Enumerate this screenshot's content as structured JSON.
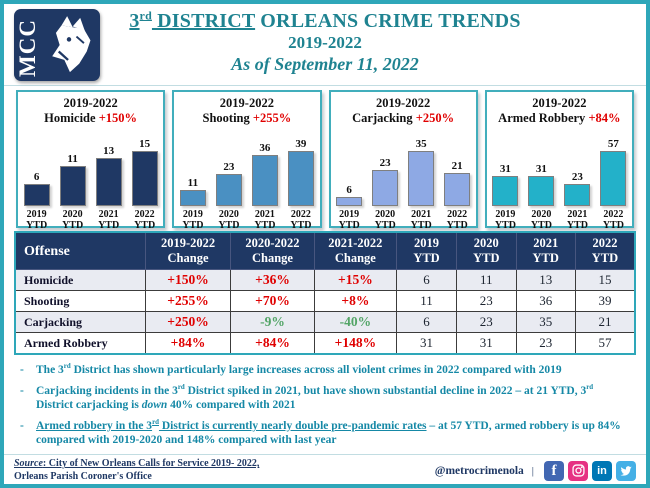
{
  "colors": {
    "accent_teal": "#2ea7b9",
    "brand_navy": "#1f3864",
    "increase_red": "#e00000",
    "decrease_green": "#53a567",
    "header_teal": "#1f8391",
    "bullet_teal": "#1588a6"
  },
  "header": {
    "logo_text": "MCC",
    "title_line1_segments": [
      {
        "t": "3",
        "c": "u"
      },
      {
        "t": "rd",
        "c": "sup u"
      },
      {
        "t": " DISTRICT",
        "c": "u"
      },
      {
        "t": " ORLEANS CRIME TRENDS"
      }
    ],
    "title_line2": "2019-2022",
    "title_line3": "As of September 11, 2022"
  },
  "chart_data": [
    {
      "type": "bar",
      "title_range": "2019-2022",
      "label": "Homicide",
      "pct_change": "+150%",
      "categories": [
        "2019 YTD",
        "2020 YTD",
        "2021 YTD",
        "2022 YTD"
      ],
      "values": [
        6,
        11,
        13,
        15
      ],
      "bar_color": "#1f3864",
      "value_labels": true,
      "ylim": [
        0,
        15
      ]
    },
    {
      "type": "bar",
      "title_range": "2019-2022",
      "label": "Shooting",
      "pct_change": "+255%",
      "categories": [
        "2019 YTD",
        "2020 YTD",
        "2021 YTD",
        "2022 YTD"
      ],
      "values": [
        11,
        23,
        36,
        39
      ],
      "bar_color": "#4a90c2",
      "value_labels": true,
      "ylim": [
        0,
        39
      ]
    },
    {
      "type": "bar",
      "title_range": "2019-2022",
      "label": "Carjacking",
      "pct_change": "+250%",
      "categories": [
        "2019 YTD",
        "2020 YTD",
        "2021 YTD",
        "2022 YTD"
      ],
      "values": [
        6,
        23,
        35,
        21
      ],
      "bar_color": "#8ea9e4",
      "value_labels": true,
      "ylim": [
        0,
        35
      ]
    },
    {
      "type": "bar",
      "title_range": "2019-2022",
      "label": "Armed Robbery",
      "pct_change": "+84%",
      "categories": [
        "2019 YTD",
        "2020 YTD",
        "2021 YTD",
        "2022 YTD"
      ],
      "values": [
        31,
        31,
        23,
        57
      ],
      "bar_color": "#23b1c9",
      "value_labels": true,
      "ylim": [
        0,
        57
      ]
    }
  ],
  "table": {
    "offense_header": "Offense",
    "headers": [
      [
        "2019-2022",
        "Change"
      ],
      [
        "2020-2022",
        "Change"
      ],
      [
        "2021-2022",
        "Change"
      ],
      [
        "2019",
        "YTD"
      ],
      [
        "2020",
        "YTD"
      ],
      [
        "2021",
        "YTD"
      ],
      [
        "2022",
        "YTD"
      ]
    ],
    "rows": [
      {
        "offense": "Homicide",
        "changes": [
          {
            "v": "+150%",
            "c": "red"
          },
          {
            "v": "+36%",
            "c": "red"
          },
          {
            "v": "+15%",
            "c": "red"
          }
        ],
        "ytd": [
          "6",
          "11",
          "13",
          "15"
        ]
      },
      {
        "offense": "Shooting",
        "changes": [
          {
            "v": "+255%",
            "c": "red"
          },
          {
            "v": "+70%",
            "c": "red"
          },
          {
            "v": "+8%",
            "c": "red"
          }
        ],
        "ytd": [
          "11",
          "23",
          "36",
          "39"
        ]
      },
      {
        "offense": "Carjacking",
        "changes": [
          {
            "v": "+250%",
            "c": "red"
          },
          {
            "v": "-9%",
            "c": "green"
          },
          {
            "v": "-40%",
            "c": "green"
          }
        ],
        "ytd": [
          "6",
          "23",
          "35",
          "21"
        ]
      },
      {
        "offense": "Armed Robbery",
        "changes": [
          {
            "v": "+84%",
            "c": "red"
          },
          {
            "v": "+84%",
            "c": "red"
          },
          {
            "v": "+148%",
            "c": "red"
          }
        ],
        "ytd": [
          "31",
          "31",
          "23",
          "57"
        ]
      }
    ]
  },
  "bullets": [
    [
      {
        "t": "The 3"
      },
      {
        "t": "rd",
        "c": "sup"
      },
      {
        "t": " District has shown particularly large increases across all violent crimes in 2022 compared with 2019"
      }
    ],
    [
      {
        "t": "Carjacking incidents in the 3"
      },
      {
        "t": "rd",
        "c": "sup"
      },
      {
        "t": " District spiked in 2021, but have shown substantial decline in 2022 – at 21 YTD, 3"
      },
      {
        "t": "rd",
        "c": "sup"
      },
      {
        "t": " District carjacking is "
      },
      {
        "t": "down",
        "c": "i"
      },
      {
        "t": " 40% compared with 2021"
      }
    ],
    [
      {
        "t": "Armed robbery in the 3",
        "c": "u"
      },
      {
        "t": "rd",
        "c": "sup u"
      },
      {
        "t": " District is currently nearly double pre-pandemic rates",
        "c": "u"
      },
      {
        "t": " – at 57 YTD, armed robbery is up 84% compared with 2019-2020 and 148% compared with last year"
      }
    ]
  ],
  "bullet_marker": "-",
  "footer": {
    "source_line1_segments": [
      {
        "t": "Source",
        "c": "i u"
      },
      {
        "t": ": City of New Orleans Calls for Service 2019- 2022,",
        "c": "u"
      }
    ],
    "source_line2": "Orleans Parish Coroner's Office",
    "social_handle": "@metrocrimenola",
    "separator": "|",
    "social_icons": [
      {
        "name": "facebook",
        "color": "#4267b2"
      },
      {
        "name": "instagram",
        "color": "#e63283"
      },
      {
        "name": "linkedin",
        "color": "#0077b5"
      },
      {
        "name": "twitter",
        "color": "#45b0e6"
      }
    ]
  }
}
